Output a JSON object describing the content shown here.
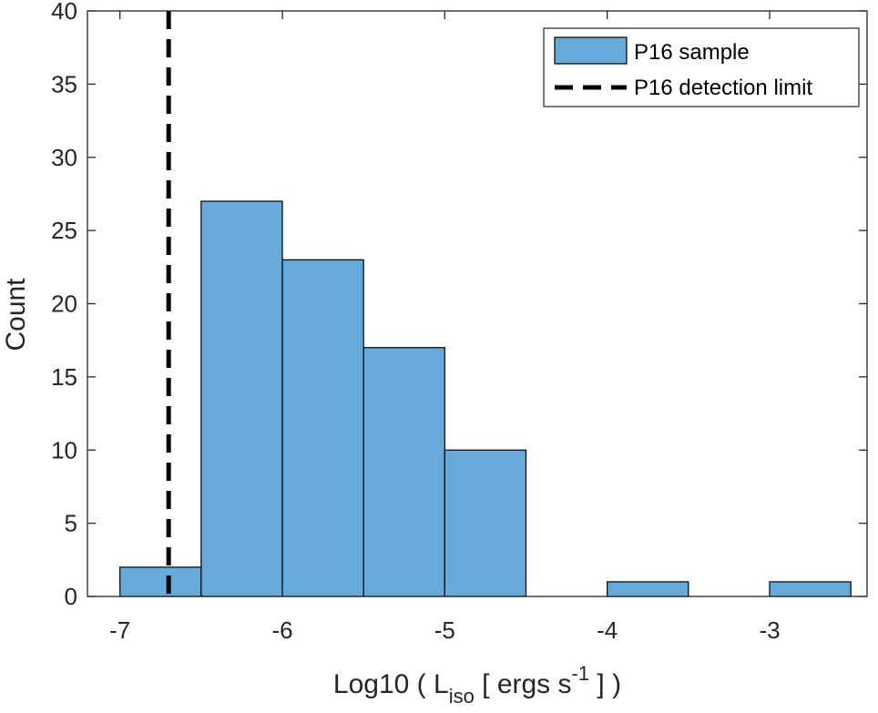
{
  "chart_data": {
    "type": "bar",
    "subtype": "histogram",
    "title": "",
    "xlabel": {
      "prefix": "Log10 ( L",
      "sub": "iso",
      "mid": " [ ergs s",
      "sup": "-1",
      "suffix": " ] )"
    },
    "ylabel": "Count",
    "xlim": [
      -7.2,
      -2.4
    ],
    "ylim": [
      0,
      40
    ],
    "xticks": [
      -7,
      -6,
      -5,
      -4,
      -3
    ],
    "xtick_labels": [
      "-7",
      "-6",
      "-5",
      "-4",
      "-3"
    ],
    "yticks": [
      0,
      5,
      10,
      15,
      20,
      25,
      30,
      35,
      40
    ],
    "ytick_labels": [
      "0",
      "5",
      "10",
      "15",
      "20",
      "25",
      "30",
      "35",
      "40"
    ],
    "bin_edges": [
      -7.0,
      -6.5,
      -6.0,
      -5.5,
      -5.0,
      -4.5,
      -4.0,
      -3.5,
      -3.0,
      -2.5
    ],
    "series": [
      {
        "name": "P16 sample",
        "values": [
          2,
          27,
          23,
          17,
          10,
          0,
          1,
          0,
          1
        ],
        "color": "#66AADA"
      }
    ],
    "reference_lines": [
      {
        "name": "P16 detection limit",
        "x": -6.7,
        "style": "dashed",
        "color": "#000000"
      }
    ],
    "legend": {
      "position": "top-right"
    },
    "grid": false
  }
}
